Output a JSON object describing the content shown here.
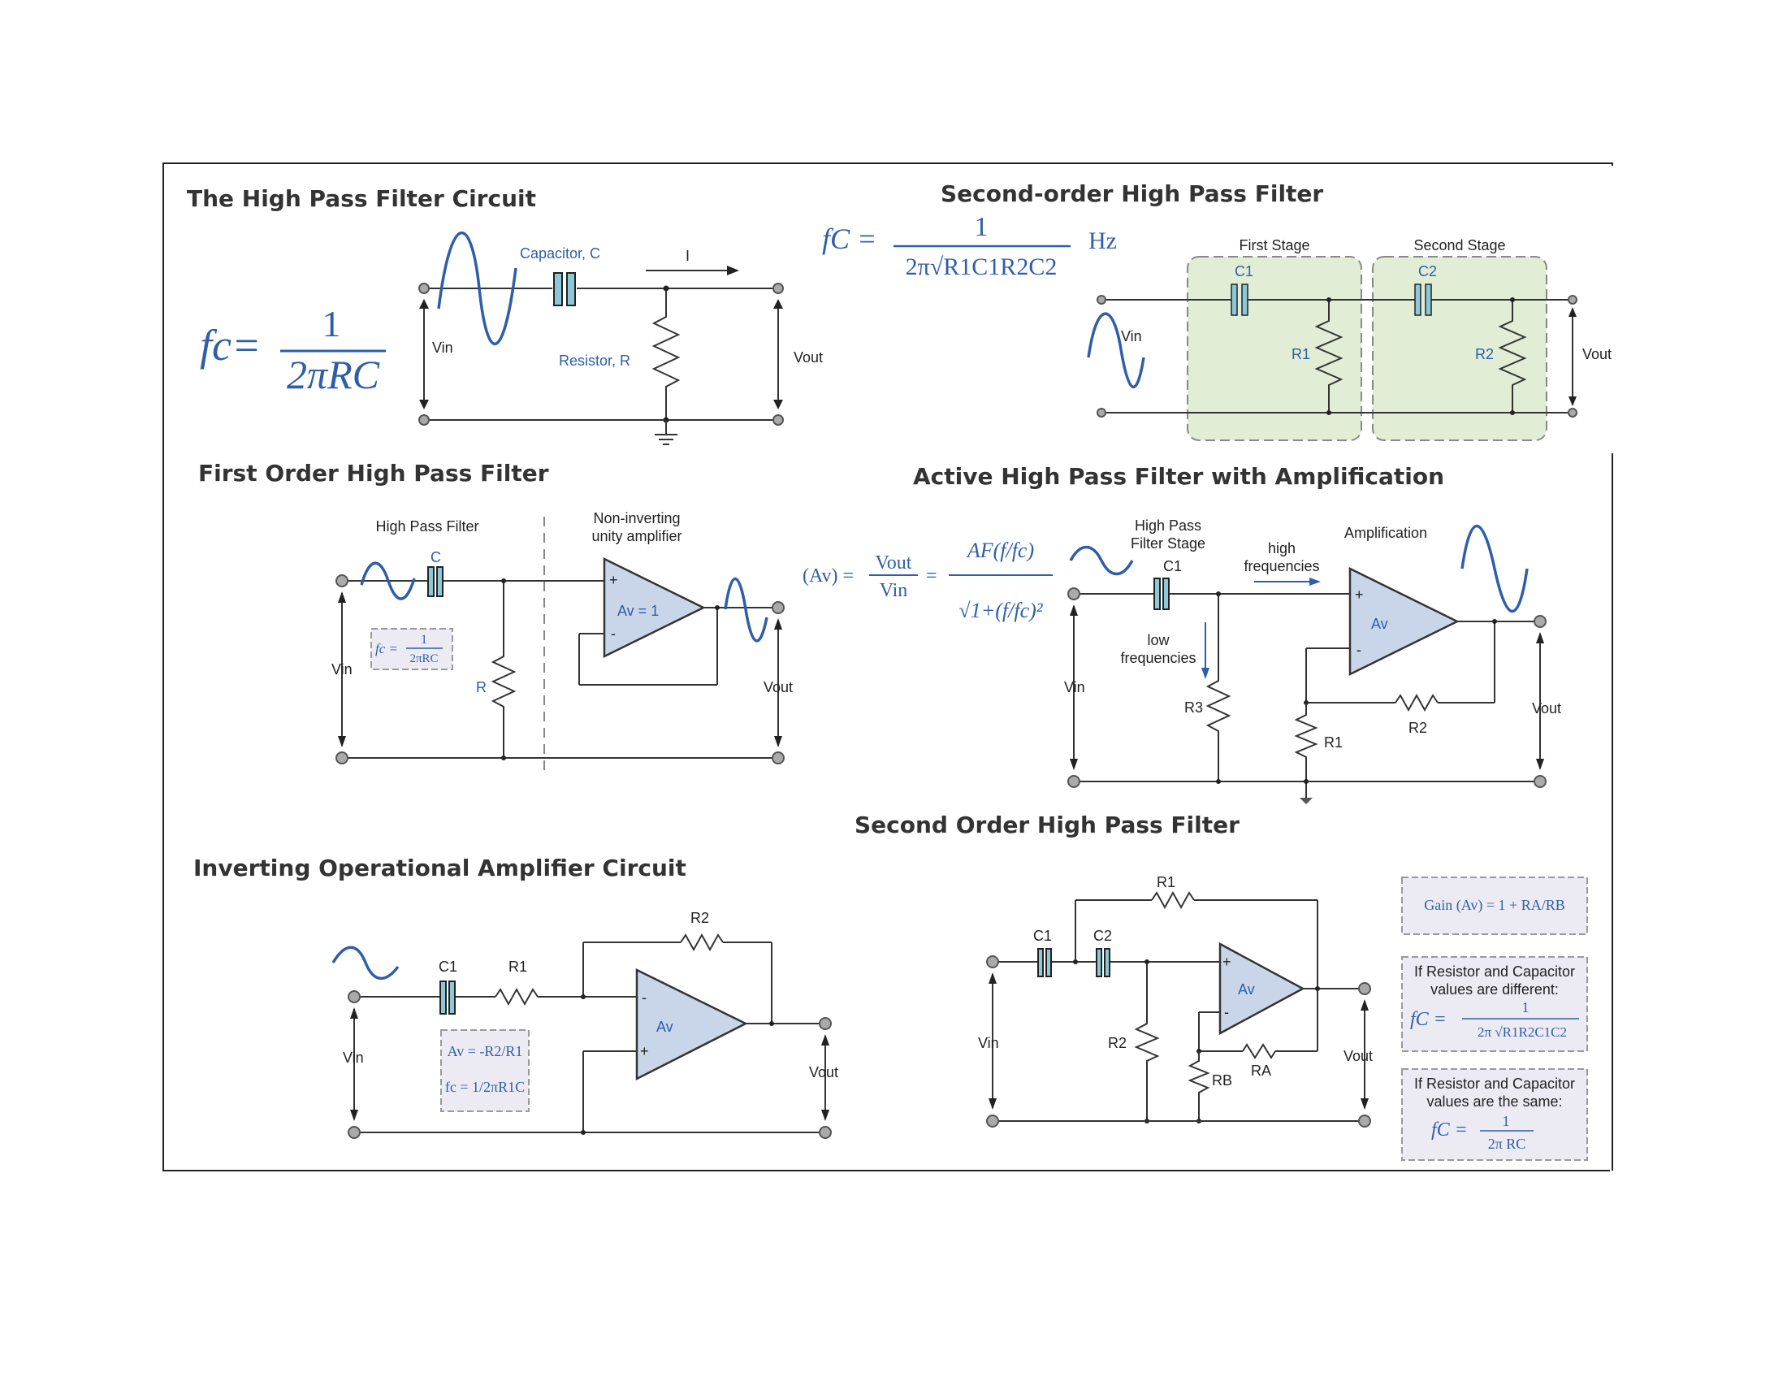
{
  "frame_title": "",
  "section1": {
    "title": "The High Pass Filter Circuit",
    "formula_lhs": "fc=",
    "formula_num": "1",
    "formula_den": "2πRC",
    "capacitor_label": "Capacitor, C",
    "current_label": "I",
    "resistor_label": "Resistor, R",
    "vin_label": "Vin",
    "vout_label": "Vout"
  },
  "section2": {
    "title": "Second-order High Pass Filter",
    "formula_lhs": "fC =",
    "formula_num": "1",
    "formula_den": "2π√R1C1R2C2",
    "formula_unit": "Hz",
    "stage1_label": "First Stage",
    "stage2_label": "Second Stage",
    "c1_label": "C1",
    "c2_label": "C2",
    "r1_label": "R1",
    "r2_label": "R2",
    "vin_label": "Vin",
    "vout_label": "Vout"
  },
  "section3": {
    "title": "First Order High Pass Filter",
    "hpf_label": "High Pass Filter",
    "amp_label_line1": "Non-inverting",
    "amp_label_line2": "unity amplifier",
    "c_label": "C",
    "r_label": "R",
    "opamp_label": "Av = 1",
    "box_formula_lhs": "fc =",
    "box_formula_num": "1",
    "box_formula_den": "2πRC",
    "vin_label": "Vin",
    "vout_label": "Vout"
  },
  "section4": {
    "title": "Active High Pass Filter with Amplification",
    "formula_lhs": "(Av) =",
    "formula_frac_num": "Vout",
    "formula_frac_den": "Vin",
    "formula_eq": "=",
    "formula_num": "AF(f/fc)",
    "formula_den": "√1+(f/fc)²",
    "stage_label_line1": "High Pass",
    "stage_label_line2": "Filter Stage",
    "amp_label": "Amplification",
    "high_label_line1": "high",
    "high_label_line2": "frequencies",
    "low_label_line1": "low",
    "low_label_line2": "frequencies",
    "c1_label": "C1",
    "r1_label": "R1",
    "r2_label": "R2",
    "r3_label": "R3",
    "opamp_label": "Av",
    "vin_label": "Vin",
    "vout_label": "Vout"
  },
  "section5": {
    "title": "Inverting Operational Amplifier Circuit",
    "c1_label": "C1",
    "r1_label": "R1",
    "r2_label": "R2",
    "opamp_label": "Av",
    "box_av": "Av = -R2/R1",
    "box_fc": "fc = 1/2πR1C",
    "vin_label": "Vin",
    "vout_label": "Vout"
  },
  "section6": {
    "title": "Second Order High Pass Filter",
    "c1_label": "C1",
    "c2_label": "C2",
    "r1_label": "R1",
    "r2_label": "R2",
    "ra_label": "RA",
    "rb_label": "RB",
    "opamp_label": "Av",
    "vin_label": "Vin",
    "vout_label": "Vout",
    "gain_box": "Gain (Av) = 1 + RA/RB",
    "diff_box_line1": "If Resistor and Capacitor",
    "diff_box_line2": "values are different:",
    "diff_box_formula_lhs": "fC =",
    "diff_box_formula_num": "1",
    "diff_box_formula_den": "2π √R1R2C1C2",
    "same_box_line1": "If Resistor and Capacitor",
    "same_box_line2": "values are the same:",
    "same_box_formula_lhs": "fC =",
    "same_box_formula_num": "1",
    "same_box_formula_den": "2π RC"
  },
  "colors": {
    "accent_blue": "#2f5ea8",
    "capacitor_fill": "#8cc8d8",
    "opamp_fill": "#c9d6ea",
    "stage_fill": "#e2edd5",
    "formula_box_fill": "#ecebf4"
  }
}
